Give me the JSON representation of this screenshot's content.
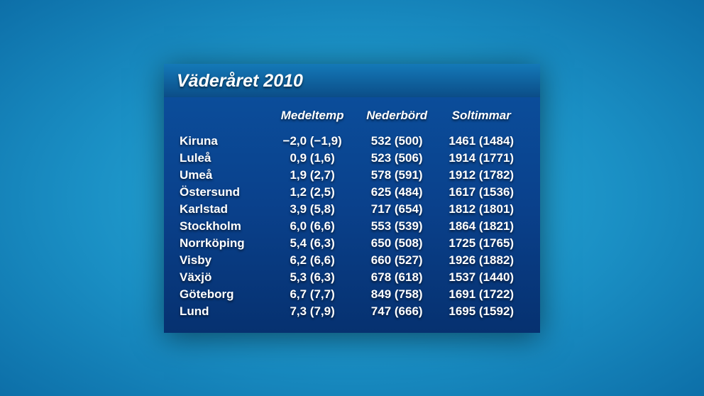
{
  "title": "Väderåret 2010",
  "columns": [
    "Medeltemp",
    "Nederbörd",
    "Soltimmar"
  ],
  "rows": [
    {
      "city": "Kiruna",
      "medeltemp": "−2,0 (−1,9)",
      "nederbord": "532 (500)",
      "soltimmar": "1461 (1484)"
    },
    {
      "city": "Luleå",
      "medeltemp": "0,9 (1,6)",
      "nederbord": "523 (506)",
      "soltimmar": "1914 (1771)"
    },
    {
      "city": "Umeå",
      "medeltemp": "1,9 (2,7)",
      "nederbord": "578 (591)",
      "soltimmar": "1912 (1782)"
    },
    {
      "city": "Östersund",
      "medeltemp": "1,2 (2,5)",
      "nederbord": "625 (484)",
      "soltimmar": "1617 (1536)"
    },
    {
      "city": "Karlstad",
      "medeltemp": "3,9 (5,8)",
      "nederbord": "717 (654)",
      "soltimmar": "1812 (1801)"
    },
    {
      "city": "Stockholm",
      "medeltemp": "6,0 (6,6)",
      "nederbord": "553 (539)",
      "soltimmar": "1864 (1821)"
    },
    {
      "city": "Norrköping",
      "medeltemp": "5,4 (6,3)",
      "nederbord": "650 (508)",
      "soltimmar": "1725 (1765)"
    },
    {
      "city": "Visby",
      "medeltemp": "6,2 (6,6)",
      "nederbord": "660 (527)",
      "soltimmar": "1926 (1882)"
    },
    {
      "city": "Växjö",
      "medeltemp": "5,3 (6,3)",
      "nederbord": "678 (618)",
      "soltimmar": "1537 (1440)"
    },
    {
      "city": "Göteborg",
      "medeltemp": "6,7 (7,7)",
      "nederbord": "849 (758)",
      "soltimmar": "1691 (1722)"
    },
    {
      "city": "Lund",
      "medeltemp": "7,3 (7,9)",
      "nederbord": "747 (666)",
      "soltimmar": "1695 (1592)"
    }
  ],
  "style": {
    "page_bg_gradient": [
      "#2cb0dc",
      "#1a8fc4",
      "#0d6fa8"
    ],
    "titlebar_gradient": [
      "#1479b8",
      "#0b4d87"
    ],
    "table_gradient": [
      "#0b4d9a",
      "#0a418c",
      "#063170"
    ],
    "text_color": "#ffffff",
    "font_family": "Trebuchet MS",
    "title_fontsize_pt": 19,
    "cell_fontsize_pt": 13,
    "italic_headers": true
  }
}
